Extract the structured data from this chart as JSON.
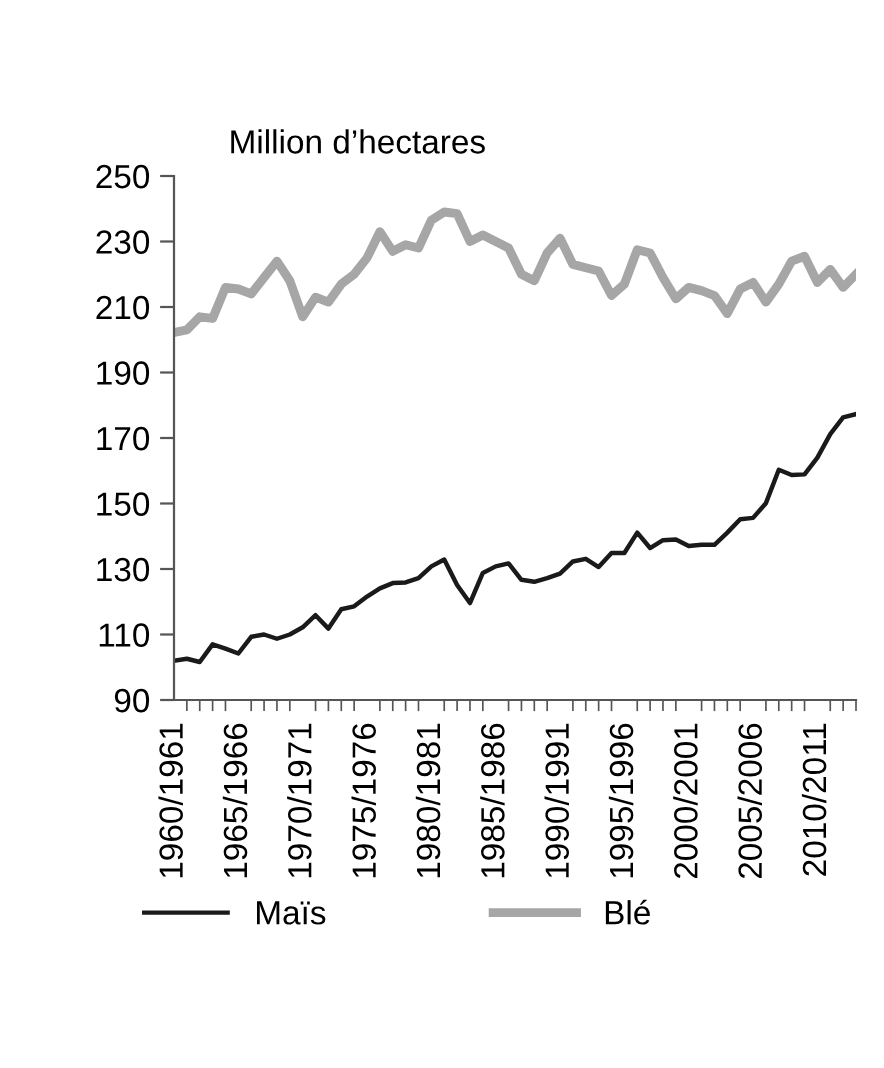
{
  "chart_data": {
    "type": "line",
    "ylabel": "Million d’hectares",
    "categories": [
      "1960/1961",
      null,
      null,
      null,
      null,
      "1965/1966",
      null,
      null,
      null,
      null,
      "1970/1971",
      null,
      null,
      null,
      null,
      "1975/1976",
      null,
      null,
      null,
      null,
      "1980/1981",
      null,
      null,
      null,
      null,
      "1985/1986",
      null,
      null,
      null,
      null,
      "1990/1991",
      null,
      null,
      null,
      null,
      "1995/1996",
      null,
      null,
      null,
      null,
      "2000/2001",
      null,
      null,
      null,
      null,
      "2005/2006",
      null,
      null,
      null,
      null,
      "2010/2011",
      null,
      null,
      null
    ],
    "series": [
      {
        "name": "Maïs",
        "color": "#1a1a1a",
        "values": [
          102,
          102.6,
          101.6,
          107,
          105.7,
          104.2,
          109.3,
          110,
          108.7,
          110,
          112.2,
          115.9,
          111.8,
          117.7,
          118.6,
          121.6,
          124.1,
          125.7,
          125.9,
          127.2,
          130.8,
          132.9,
          125.1,
          119.6,
          128.8,
          130.8,
          131.7,
          126.7,
          126.1,
          127.2,
          128.6,
          132.3,
          133.1,
          130.6,
          134.9,
          134.9,
          141.1,
          136.4,
          138.8,
          139,
          137,
          137.4,
          137.4,
          141.1,
          145.2,
          145.6,
          150.1,
          160.3,
          158.7,
          158.9,
          164,
          171.2,
          176.3,
          177.3
        ]
      },
      {
        "name": "Blé",
        "color": "#a6a6a6",
        "values": [
          202.2,
          203,
          207,
          206.5,
          216,
          215.5,
          214,
          219,
          224,
          218,
          207,
          213,
          211.5,
          217,
          220,
          225,
          233,
          227,
          229,
          228,
          236.5,
          239,
          238.5,
          230,
          232,
          230,
          228,
          220,
          218,
          226.5,
          231,
          223,
          222,
          221,
          213.5,
          217,
          227.5,
          226.5,
          219,
          212.5,
          216,
          215,
          213.5,
          208,
          215.5,
          217.5,
          211.5,
          217,
          224,
          225.5,
          217.5,
          221.5,
          216,
          220
        ]
      }
    ],
    "ylim": [
      90,
      250
    ],
    "yticks": [
      90,
      110,
      130,
      150,
      170,
      190,
      210,
      230,
      250
    ],
    "grid": false,
    "legend": "bottom",
    "marker": "none",
    "line_style": "solid"
  }
}
